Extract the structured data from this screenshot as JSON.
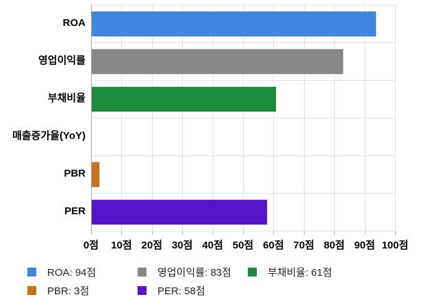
{
  "chart_data": {
    "type": "bar",
    "orientation": "horizontal",
    "categories": [
      "ROA",
      "영업이익률",
      "부채비율",
      "매출증가율(YoY)",
      "PBR",
      "PER"
    ],
    "values": [
      94,
      83,
      61,
      0,
      3,
      58
    ],
    "bar_colors": [
      "#3e86e0",
      "#878787",
      "#1c8c3c",
      null,
      "#c8711a",
      "#5416c8"
    ],
    "unit": "점",
    "xlim": [
      0,
      100
    ],
    "x_tick_values": [
      0,
      10,
      20,
      30,
      40,
      50,
      60,
      70,
      80,
      90,
      100
    ],
    "x_tick_labels": [
      "0점",
      "10점",
      "20점",
      "30점",
      "40점",
      "50점",
      "60점",
      "70점",
      "80점",
      "90점",
      "100점"
    ],
    "grid": true,
    "legend_position": "bottom"
  },
  "legend": {
    "items": [
      {
        "label": "ROA: 94점",
        "color": "#3e86e0"
      },
      {
        "label": "영업이익률: 83점",
        "color": "#878787"
      },
      {
        "label": "부채비율: 61점",
        "color": "#1c8c3c"
      },
      {
        "label": "PBR: 3점",
        "color": "#c8711a"
      },
      {
        "label": "PER: 58점",
        "color": "#5416c8"
      }
    ]
  }
}
